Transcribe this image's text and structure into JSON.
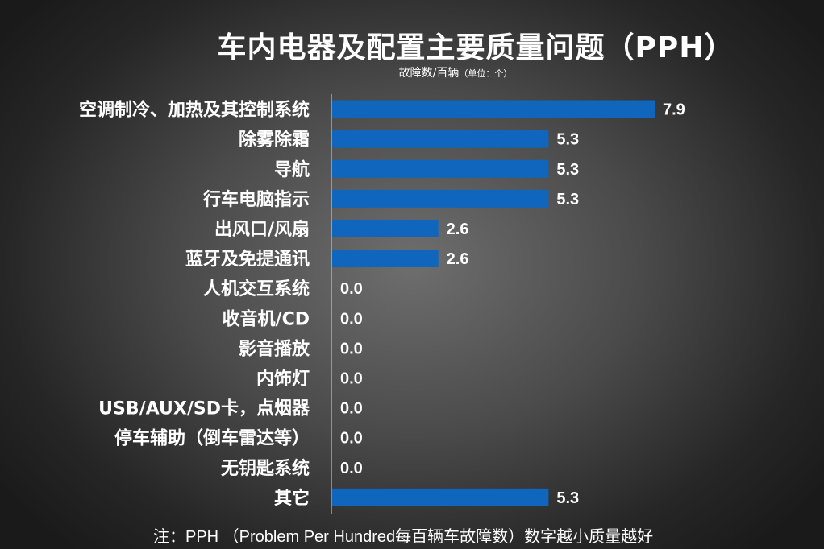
{
  "chart_data": {
    "type": "bar",
    "orientation": "horizontal",
    "title": "车内电器及配置主要质量问题（PPH）",
    "subtitle": "故障数/百辆",
    "unit_note": "（单位：个）",
    "categories": [
      "空调制冷、加热及其控制系统",
      "除雾除霜",
      "导航",
      "行车电脑指示",
      "出风口/风扇",
      "蓝牙及免提通讯",
      "人机交互系统",
      "收音机/CD",
      "影音播放",
      "内饰灯",
      "USB/AUX/SD卡，点烟器",
      "停车辅助（倒车雷达等）",
      "无钥匙系统",
      "其它"
    ],
    "values": [
      7.9,
      5.3,
      5.3,
      5.3,
      2.6,
      2.6,
      0.0,
      0.0,
      0.0,
      0.0,
      0.0,
      0.0,
      0.0,
      5.3
    ],
    "value_labels": [
      "7.9",
      "5.3",
      "5.3",
      "5.3",
      "2.6",
      "2.6",
      "0.0",
      "0.0",
      "0.0",
      "0.0",
      "0.0",
      "0.0",
      "0.0",
      "5.3"
    ],
    "xlim": [
      0,
      7.9
    ],
    "grid": false,
    "legend": "none",
    "bar_color": "#1066bd"
  },
  "footnote": "注：PPH （Problem Per Hundred每百辆车故障数）数字越小质量越好"
}
